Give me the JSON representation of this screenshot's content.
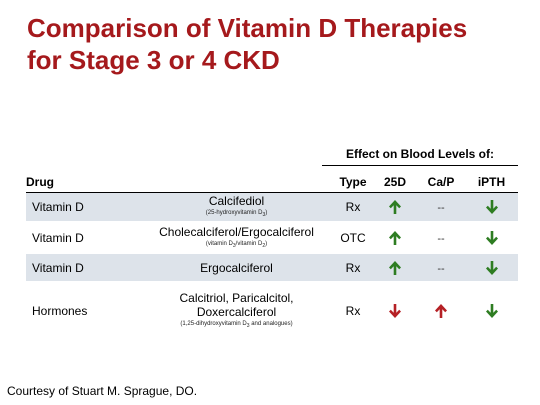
{
  "title": {
    "line1": "Comparison of Vitamin D Therapies",
    "line2": "for Stage 3 or 4 CKD"
  },
  "effect_header": "Effect on Blood Levels of:",
  "columns": {
    "drug": "Drug",
    "type": "Type",
    "d25": "25D",
    "cap": "Ca/P",
    "ipth": "iPTH"
  },
  "rows": [
    {
      "drug": "Vitamin D",
      "name": "Calcifediol",
      "sub": "(25-hydroxyvitamin D3)",
      "type": "Rx",
      "d25": "up",
      "cap": "--",
      "ipth": "down"
    },
    {
      "drug": "Vitamin D",
      "name": "Cholecalciferol/Ergocalciferol",
      "sub": "(vitamin D3/vitamin D2)",
      "type": "OTC",
      "d25": "up",
      "cap": "--",
      "ipth": "down"
    },
    {
      "drug": "Vitamin D",
      "name": "Ergocalciferol",
      "sub": "",
      "type": "Rx",
      "d25": "up",
      "cap": "--",
      "ipth": "down"
    },
    {
      "drug": "Hormones",
      "name_line1": "Calcitriol, Paricalcitol,",
      "name_line2": "Doxercalciferol",
      "sub": "(1,25-dihydroxyvitamin D3 and analogues)",
      "type": "Rx",
      "d25": "down",
      "cap": "up",
      "ipth": "down"
    }
  ],
  "credit": "Courtesy of Stuart M. Sprague, DO.",
  "colors": {
    "title": "#a5191c",
    "arrow_green": "#2e7d22",
    "arrow_red": "#b52025",
    "row_shade": "#dde3ea"
  },
  "icons": {
    "up_green": "up-arrow-icon",
    "down_green": "down-arrow-icon",
    "up_red": "up-arrow-icon",
    "down_red": "down-arrow-icon"
  }
}
